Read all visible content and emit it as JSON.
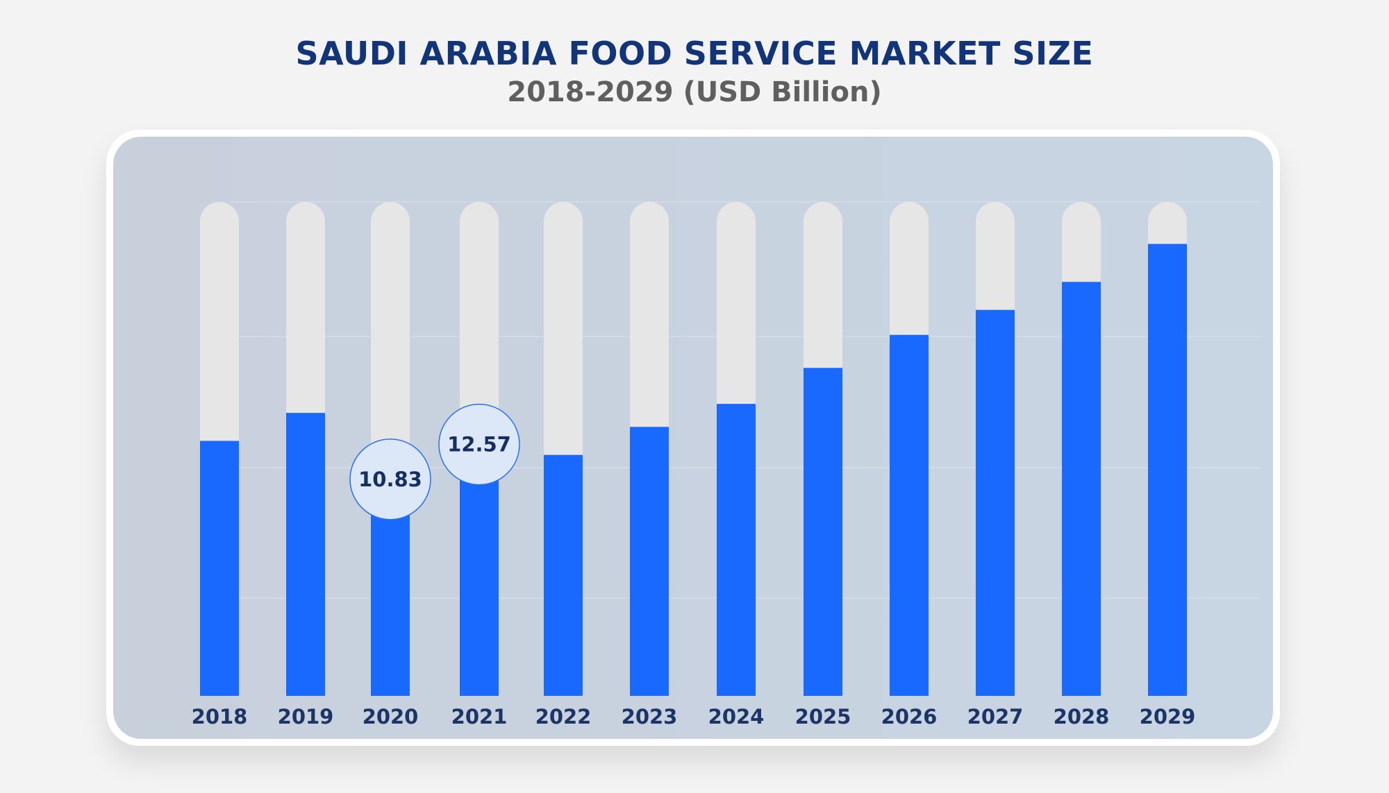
{
  "chart_data": {
    "type": "bar",
    "title": "SAUDI ARABIA FOOD SERVICE MARKET SIZE",
    "subtitle": "2018-2029 (USD Billion)",
    "categories": [
      "2018",
      "2019",
      "2020",
      "2021",
      "2022",
      "2023",
      "2024",
      "2025",
      "2026",
      "2027",
      "2028",
      "2029"
    ],
    "values": [
      12.75,
      14.15,
      10.83,
      12.57,
      12.05,
      13.45,
      14.6,
      16.4,
      18.05,
      19.3,
      20.7,
      22.6
    ],
    "data_labels": [
      {
        "category": "2020",
        "text": "10.83"
      },
      {
        "category": "2021",
        "text": "12.57"
      }
    ],
    "ylim": [
      0,
      24.7
    ],
    "grid": true,
    "colors": {
      "bar": "#1a69ff",
      "track": "#e6e6e6",
      "bubble_fill": "#dce7f8",
      "bubble_stroke": "#2d6fe8"
    }
  }
}
